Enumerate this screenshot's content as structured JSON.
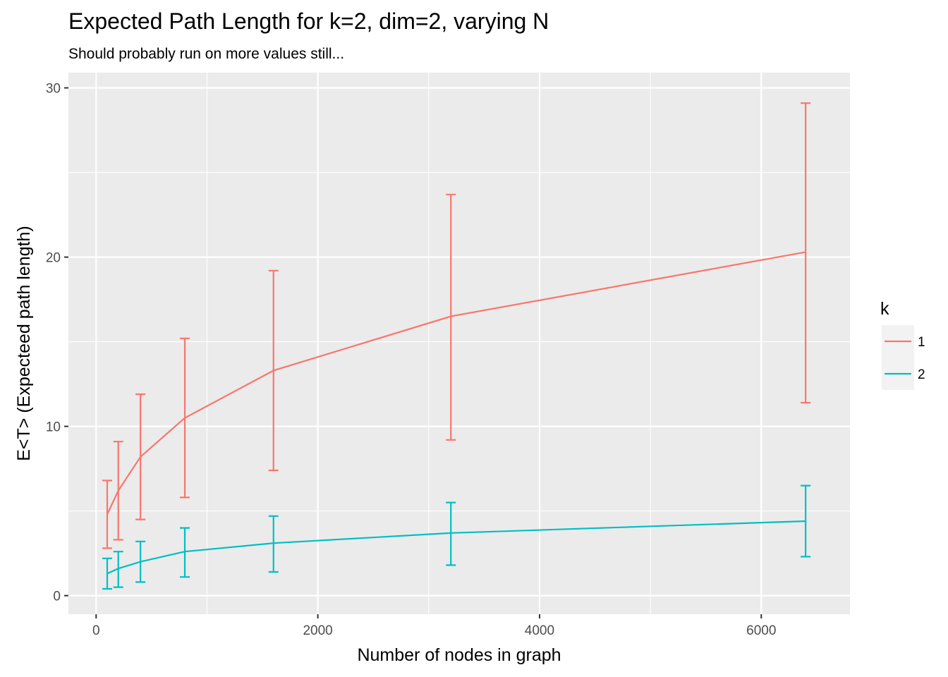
{
  "chart_data": {
    "type": "line",
    "title": "Expected Path Length for k=2, dim=2, varying N",
    "subtitle": "Should probably run on more values still...",
    "xlabel": "Number of nodes in graph",
    "ylabel": "E<T> (Expecteed path length)",
    "xlim": [
      -250,
      6800
    ],
    "ylim": [
      -1.1,
      30.9
    ],
    "x_ticks": [
      0,
      2000,
      4000,
      6000
    ],
    "x_tick_labels": [
      "0",
      "2000",
      "4000",
      "6000"
    ],
    "y_ticks": [
      0,
      10,
      20,
      30
    ],
    "y_tick_labels": [
      "0",
      "10",
      "20",
      "30"
    ],
    "grid": true,
    "legend": {
      "title": "k",
      "position": "right"
    },
    "x": [
      100,
      200,
      400,
      800,
      1600,
      3200,
      6400
    ],
    "series": [
      {
        "name": "1",
        "color": "#F8766D",
        "values": [
          4.8,
          6.2,
          8.2,
          10.5,
          13.3,
          16.5,
          20.3
        ],
        "error_low": [
          2.8,
          3.3,
          4.5,
          5.8,
          7.4,
          9.2,
          11.4
        ],
        "error_high": [
          6.8,
          9.1,
          11.9,
          15.2,
          19.2,
          23.7,
          29.1
        ]
      },
      {
        "name": "2",
        "color": "#00BFC4",
        "values": [
          1.3,
          1.6,
          2.0,
          2.6,
          3.1,
          3.7,
          4.4
        ],
        "error_low": [
          0.4,
          0.5,
          0.8,
          1.1,
          1.4,
          1.8,
          2.3
        ],
        "error_high": [
          2.2,
          2.6,
          3.2,
          4.0,
          4.7,
          5.5,
          6.5
        ]
      }
    ]
  }
}
